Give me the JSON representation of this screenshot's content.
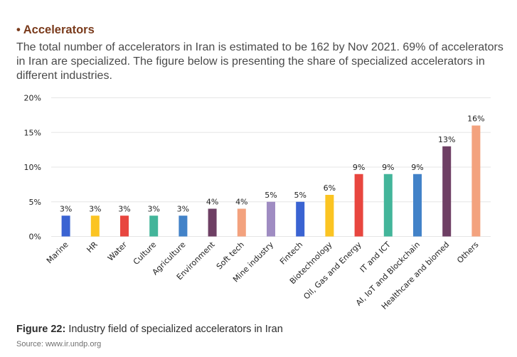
{
  "section": {
    "bullet": "•",
    "title": "Accelerators",
    "paragraph_lines": [
      "The total number of accelerators in Iran is estimated to be 162 by Nov 2021. 69% of accelerators",
      "in Iran are specialized. The figure below is presenting the share of specialized accelerators in",
      "different industries."
    ]
  },
  "figure": {
    "label": "Figure 22:",
    "caption": "Industry field of specialized accelerators in Iran",
    "source": "Source: www.ir.undp.org"
  },
  "chart_data": {
    "type": "bar",
    "title": "",
    "xlabel": "",
    "ylabel": "",
    "ylim": [
      0,
      20
    ],
    "y_ticks": [
      "0%",
      "5%",
      "10%",
      "15%",
      "20%"
    ],
    "categories": [
      "Marine",
      "HR",
      "Water",
      "Culture",
      "Agriculture",
      "Environment",
      "Soft tech",
      "Mine industry",
      "Fintech",
      "Biotechnology",
      "Oil, Gas and Energy",
      "IT and ICT",
      "AI, IoT and Blockchain",
      "Healthcare and biomed",
      "Others"
    ],
    "values": [
      3,
      3,
      3,
      3,
      3,
      4,
      4,
      5,
      5,
      6,
      9,
      9,
      9,
      13,
      16
    ],
    "labels": [
      "3%",
      "3%",
      "3%",
      "3%",
      "3%",
      "4%",
      "4%",
      "5%",
      "5%",
      "6%",
      "9%",
      "9%",
      "9%",
      "13%",
      "16%"
    ],
    "colors": [
      "#3a63d2",
      "#fbc422",
      "#e8463f",
      "#43b59a",
      "#4282c8",
      "#6e3f64",
      "#f3a27e",
      "#9f8cc2",
      "#3a63d2",
      "#fbc422",
      "#e8463f",
      "#43b59a",
      "#4282c8",
      "#6e3f64",
      "#f3a27e"
    ],
    "grid": true
  }
}
